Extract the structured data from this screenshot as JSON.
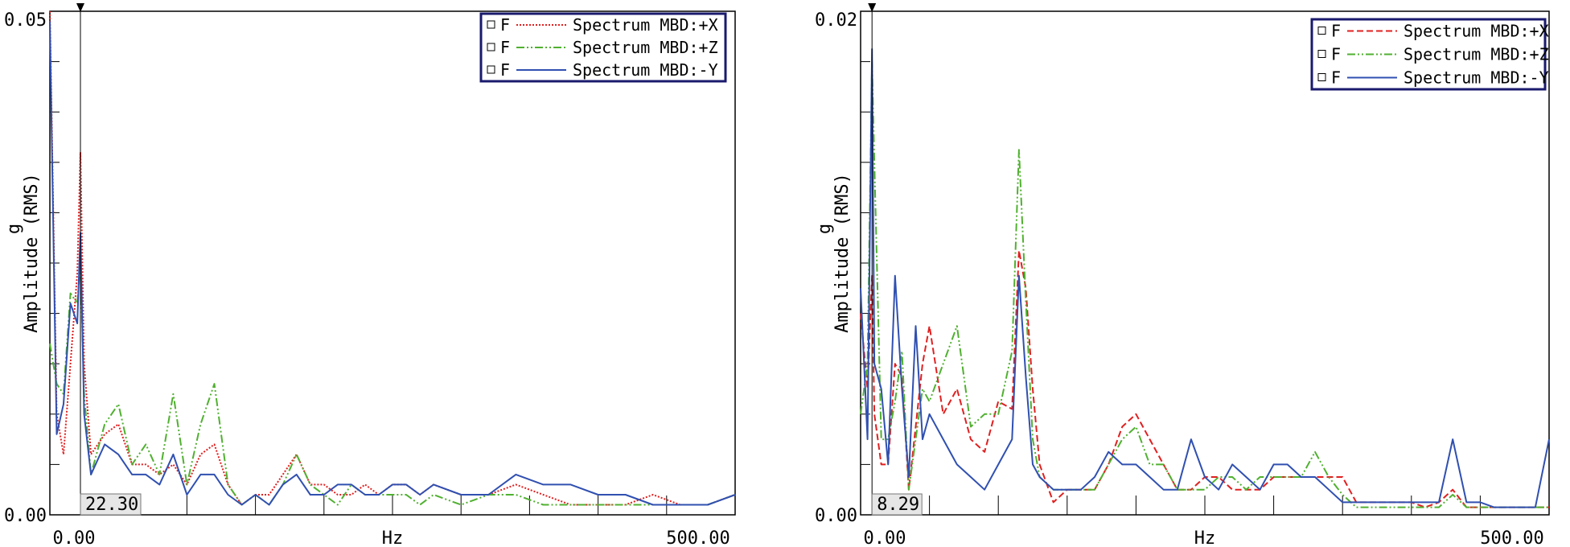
{
  "chart_data": [
    {
      "type": "line",
      "title": "",
      "xlabel": "Hz",
      "ylabel": "g",
      "ylabel_line2": "Amplitude (RMS)",
      "xlim": [
        0,
        500
      ],
      "ylim": [
        0,
        0.05
      ],
      "x_tick_labels": [
        "0.00",
        "500.00"
      ],
      "y_tick_labels": [
        "0.00",
        "0.05"
      ],
      "cursor_x": 22.3,
      "cursor_label": "22.30",
      "legend_position": "top-right",
      "legend_marker_text": "F",
      "series": [
        {
          "name": "Spectrum MBD:+X",
          "color": "#e02020",
          "style": "dotted",
          "x": [
            0,
            5,
            10,
            15,
            20,
            22.3,
            25,
            30,
            40,
            50,
            60,
            70,
            80,
            90,
            100,
            110,
            120,
            130,
            140,
            150,
            160,
            170,
            180,
            190,
            200,
            210,
            220,
            230,
            240,
            250,
            260,
            270,
            280,
            300,
            320,
            340,
            360,
            380,
            400,
            420,
            440,
            460,
            480,
            500
          ],
          "values": [
            0.05,
            0.01,
            0.006,
            0.015,
            0.024,
            0.036,
            0.015,
            0.006,
            0.008,
            0.009,
            0.005,
            0.005,
            0.004,
            0.005,
            0.003,
            0.006,
            0.007,
            0.003,
            0.001,
            0.002,
            0.002,
            0.004,
            0.006,
            0.003,
            0.003,
            0.002,
            0.002,
            0.003,
            0.002,
            0.003,
            0.003,
            0.002,
            0.003,
            0.002,
            0.002,
            0.003,
            0.002,
            0.001,
            0.001,
            0.001,
            0.002,
            0.001,
            0.001,
            0.002
          ]
        },
        {
          "name": "Spectrum MBD:+Z",
          "color": "#50b030",
          "style": "dash-dot-dot",
          "x": [
            0,
            5,
            10,
            15,
            20,
            22.3,
            25,
            30,
            40,
            50,
            60,
            70,
            80,
            90,
            100,
            110,
            120,
            130,
            140,
            150,
            160,
            170,
            180,
            190,
            200,
            210,
            220,
            230,
            240,
            250,
            260,
            270,
            280,
            300,
            320,
            340,
            360,
            380,
            400,
            420,
            440,
            460,
            480,
            500
          ],
          "values": [
            0.017,
            0.013,
            0.012,
            0.022,
            0.021,
            0.025,
            0.012,
            0.004,
            0.009,
            0.011,
            0.005,
            0.007,
            0.004,
            0.012,
            0.003,
            0.009,
            0.013,
            0.003,
            0.001,
            0.002,
            0.001,
            0.003,
            0.006,
            0.003,
            0.002,
            0.001,
            0.003,
            0.002,
            0.002,
            0.002,
            0.002,
            0.001,
            0.002,
            0.001,
            0.002,
            0.002,
            0.001,
            0.001,
            0.001,
            0.001,
            0.001,
            0.001,
            0.001,
            0.002
          ]
        },
        {
          "name": "Spectrum MBD:-Y",
          "color": "#3050b0",
          "style": "solid",
          "x": [
            0,
            5,
            10,
            15,
            20,
            22.3,
            25,
            30,
            40,
            50,
            60,
            70,
            80,
            90,
            100,
            110,
            120,
            130,
            140,
            150,
            160,
            170,
            180,
            190,
            200,
            210,
            220,
            230,
            240,
            250,
            260,
            270,
            280,
            300,
            320,
            340,
            360,
            380,
            400,
            420,
            440,
            460,
            480,
            500
          ],
          "values": [
            0.049,
            0.008,
            0.011,
            0.021,
            0.019,
            0.028,
            0.01,
            0.004,
            0.007,
            0.006,
            0.004,
            0.004,
            0.003,
            0.006,
            0.002,
            0.004,
            0.004,
            0.002,
            0.001,
            0.002,
            0.001,
            0.003,
            0.004,
            0.002,
            0.002,
            0.003,
            0.003,
            0.002,
            0.002,
            0.003,
            0.003,
            0.002,
            0.003,
            0.002,
            0.002,
            0.004,
            0.003,
            0.003,
            0.002,
            0.002,
            0.001,
            0.001,
            0.001,
            0.002
          ]
        }
      ]
    },
    {
      "type": "line",
      "title": "",
      "xlabel": "Hz",
      "ylabel": "g",
      "ylabel_line2": "Amplitude (RMS)",
      "xlim": [
        0,
        500
      ],
      "ylim": [
        0,
        0.02
      ],
      "x_tick_labels": [
        "0.00",
        "500.00"
      ],
      "y_tick_labels": [
        "0.00",
        "0.02"
      ],
      "cursor_x": 8.29,
      "cursor_label": "8.29",
      "legend_position": "top-right",
      "legend_marker_text": "F",
      "series": [
        {
          "name": "Spectrum MBD:+X",
          "color": "#e02020",
          "style": "dashed",
          "x": [
            0,
            5,
            8.29,
            10,
            15,
            20,
            25,
            30,
            35,
            40,
            45,
            50,
            60,
            70,
            80,
            90,
            100,
            110,
            115,
            120,
            125,
            130,
            140,
            150,
            160,
            170,
            180,
            190,
            200,
            210,
            220,
            230,
            240,
            250,
            260,
            270,
            280,
            290,
            300,
            310,
            320,
            330,
            340,
            350,
            360,
            370,
            380,
            390,
            400,
            410,
            420,
            430,
            440,
            450,
            460,
            470,
            480,
            490,
            500
          ],
          "values": [
            0.008,
            0.005,
            0.0095,
            0.004,
            0.002,
            0.002,
            0.006,
            0.0055,
            0.001,
            0.0035,
            0.006,
            0.0075,
            0.004,
            0.005,
            0.003,
            0.0025,
            0.0045,
            0.0042,
            0.0105,
            0.009,
            0.005,
            0.002,
            0.0005,
            0.001,
            0.001,
            0.001,
            0.002,
            0.0035,
            0.004,
            0.003,
            0.002,
            0.001,
            0.001,
            0.0015,
            0.0015,
            0.001,
            0.001,
            0.001,
            0.0015,
            0.0015,
            0.0015,
            0.0015,
            0.0015,
            0.0015,
            0.0005,
            0.0005,
            0.0005,
            0.0005,
            0.0005,
            0.0003,
            0.0005,
            0.001,
            0.0003,
            0.0003,
            0.0003,
            0.0003,
            0.0003,
            0.0003,
            0.0003
          ]
        },
        {
          "name": "Spectrum MBD:+Z",
          "color": "#50b030",
          "style": "dash-dot-dot",
          "x": [
            0,
            5,
            8.29,
            10,
            15,
            20,
            25,
            30,
            35,
            40,
            45,
            50,
            60,
            70,
            80,
            90,
            100,
            110,
            115,
            120,
            125,
            130,
            140,
            150,
            160,
            170,
            180,
            190,
            200,
            210,
            220,
            230,
            240,
            250,
            260,
            270,
            280,
            290,
            300,
            310,
            320,
            330,
            340,
            350,
            360,
            370,
            380,
            390,
            400,
            410,
            420,
            430,
            440,
            450,
            460,
            470,
            480,
            490,
            500
          ],
          "values": [
            0.004,
            0.006,
            0.018,
            0.014,
            0.003,
            0.003,
            0.0045,
            0.0065,
            0.001,
            0.003,
            0.005,
            0.0045,
            0.006,
            0.0075,
            0.0035,
            0.004,
            0.004,
            0.0065,
            0.0145,
            0.0085,
            0.003,
            0.0015,
            0.001,
            0.001,
            0.001,
            0.001,
            0.002,
            0.003,
            0.0035,
            0.002,
            0.002,
            0.001,
            0.001,
            0.001,
            0.0015,
            0.0015,
            0.001,
            0.0015,
            0.0015,
            0.0015,
            0.0015,
            0.0025,
            0.0015,
            0.0008,
            0.0003,
            0.0003,
            0.0003,
            0.0003,
            0.0003,
            0.0003,
            0.0003,
            0.0008,
            0.0003,
            0.0003,
            0.0003,
            0.0003,
            0.0003,
            0.0003,
            0.0003
          ]
        },
        {
          "name": "Spectrum MBD:-Y",
          "color": "#3050b0",
          "style": "solid",
          "x": [
            0,
            5,
            8.29,
            10,
            15,
            20,
            25,
            30,
            35,
            40,
            45,
            50,
            60,
            70,
            80,
            90,
            100,
            110,
            115,
            120,
            125,
            130,
            140,
            150,
            160,
            170,
            180,
            190,
            200,
            210,
            220,
            230,
            240,
            250,
            260,
            270,
            280,
            290,
            300,
            310,
            320,
            330,
            340,
            350,
            360,
            370,
            380,
            390,
            400,
            410,
            420,
            430,
            440,
            450,
            460,
            470,
            480,
            490,
            500
          ],
          "values": [
            0.009,
            0.003,
            0.0185,
            0.006,
            0.005,
            0.002,
            0.0095,
            0.005,
            0.0015,
            0.0075,
            0.003,
            0.004,
            0.003,
            0.002,
            0.0015,
            0.001,
            0.002,
            0.003,
            0.0095,
            0.0055,
            0.002,
            0.0015,
            0.001,
            0.001,
            0.001,
            0.0015,
            0.0025,
            0.002,
            0.002,
            0.0015,
            0.001,
            0.001,
            0.003,
            0.0015,
            0.001,
            0.002,
            0.0015,
            0.001,
            0.002,
            0.002,
            0.0015,
            0.0015,
            0.001,
            0.0005,
            0.0005,
            0.0005,
            0.0005,
            0.0005,
            0.0005,
            0.0005,
            0.0005,
            0.003,
            0.0005,
            0.0005,
            0.0003,
            0.0003,
            0.0003,
            0.0003,
            0.003
          ]
        }
      ]
    }
  ]
}
